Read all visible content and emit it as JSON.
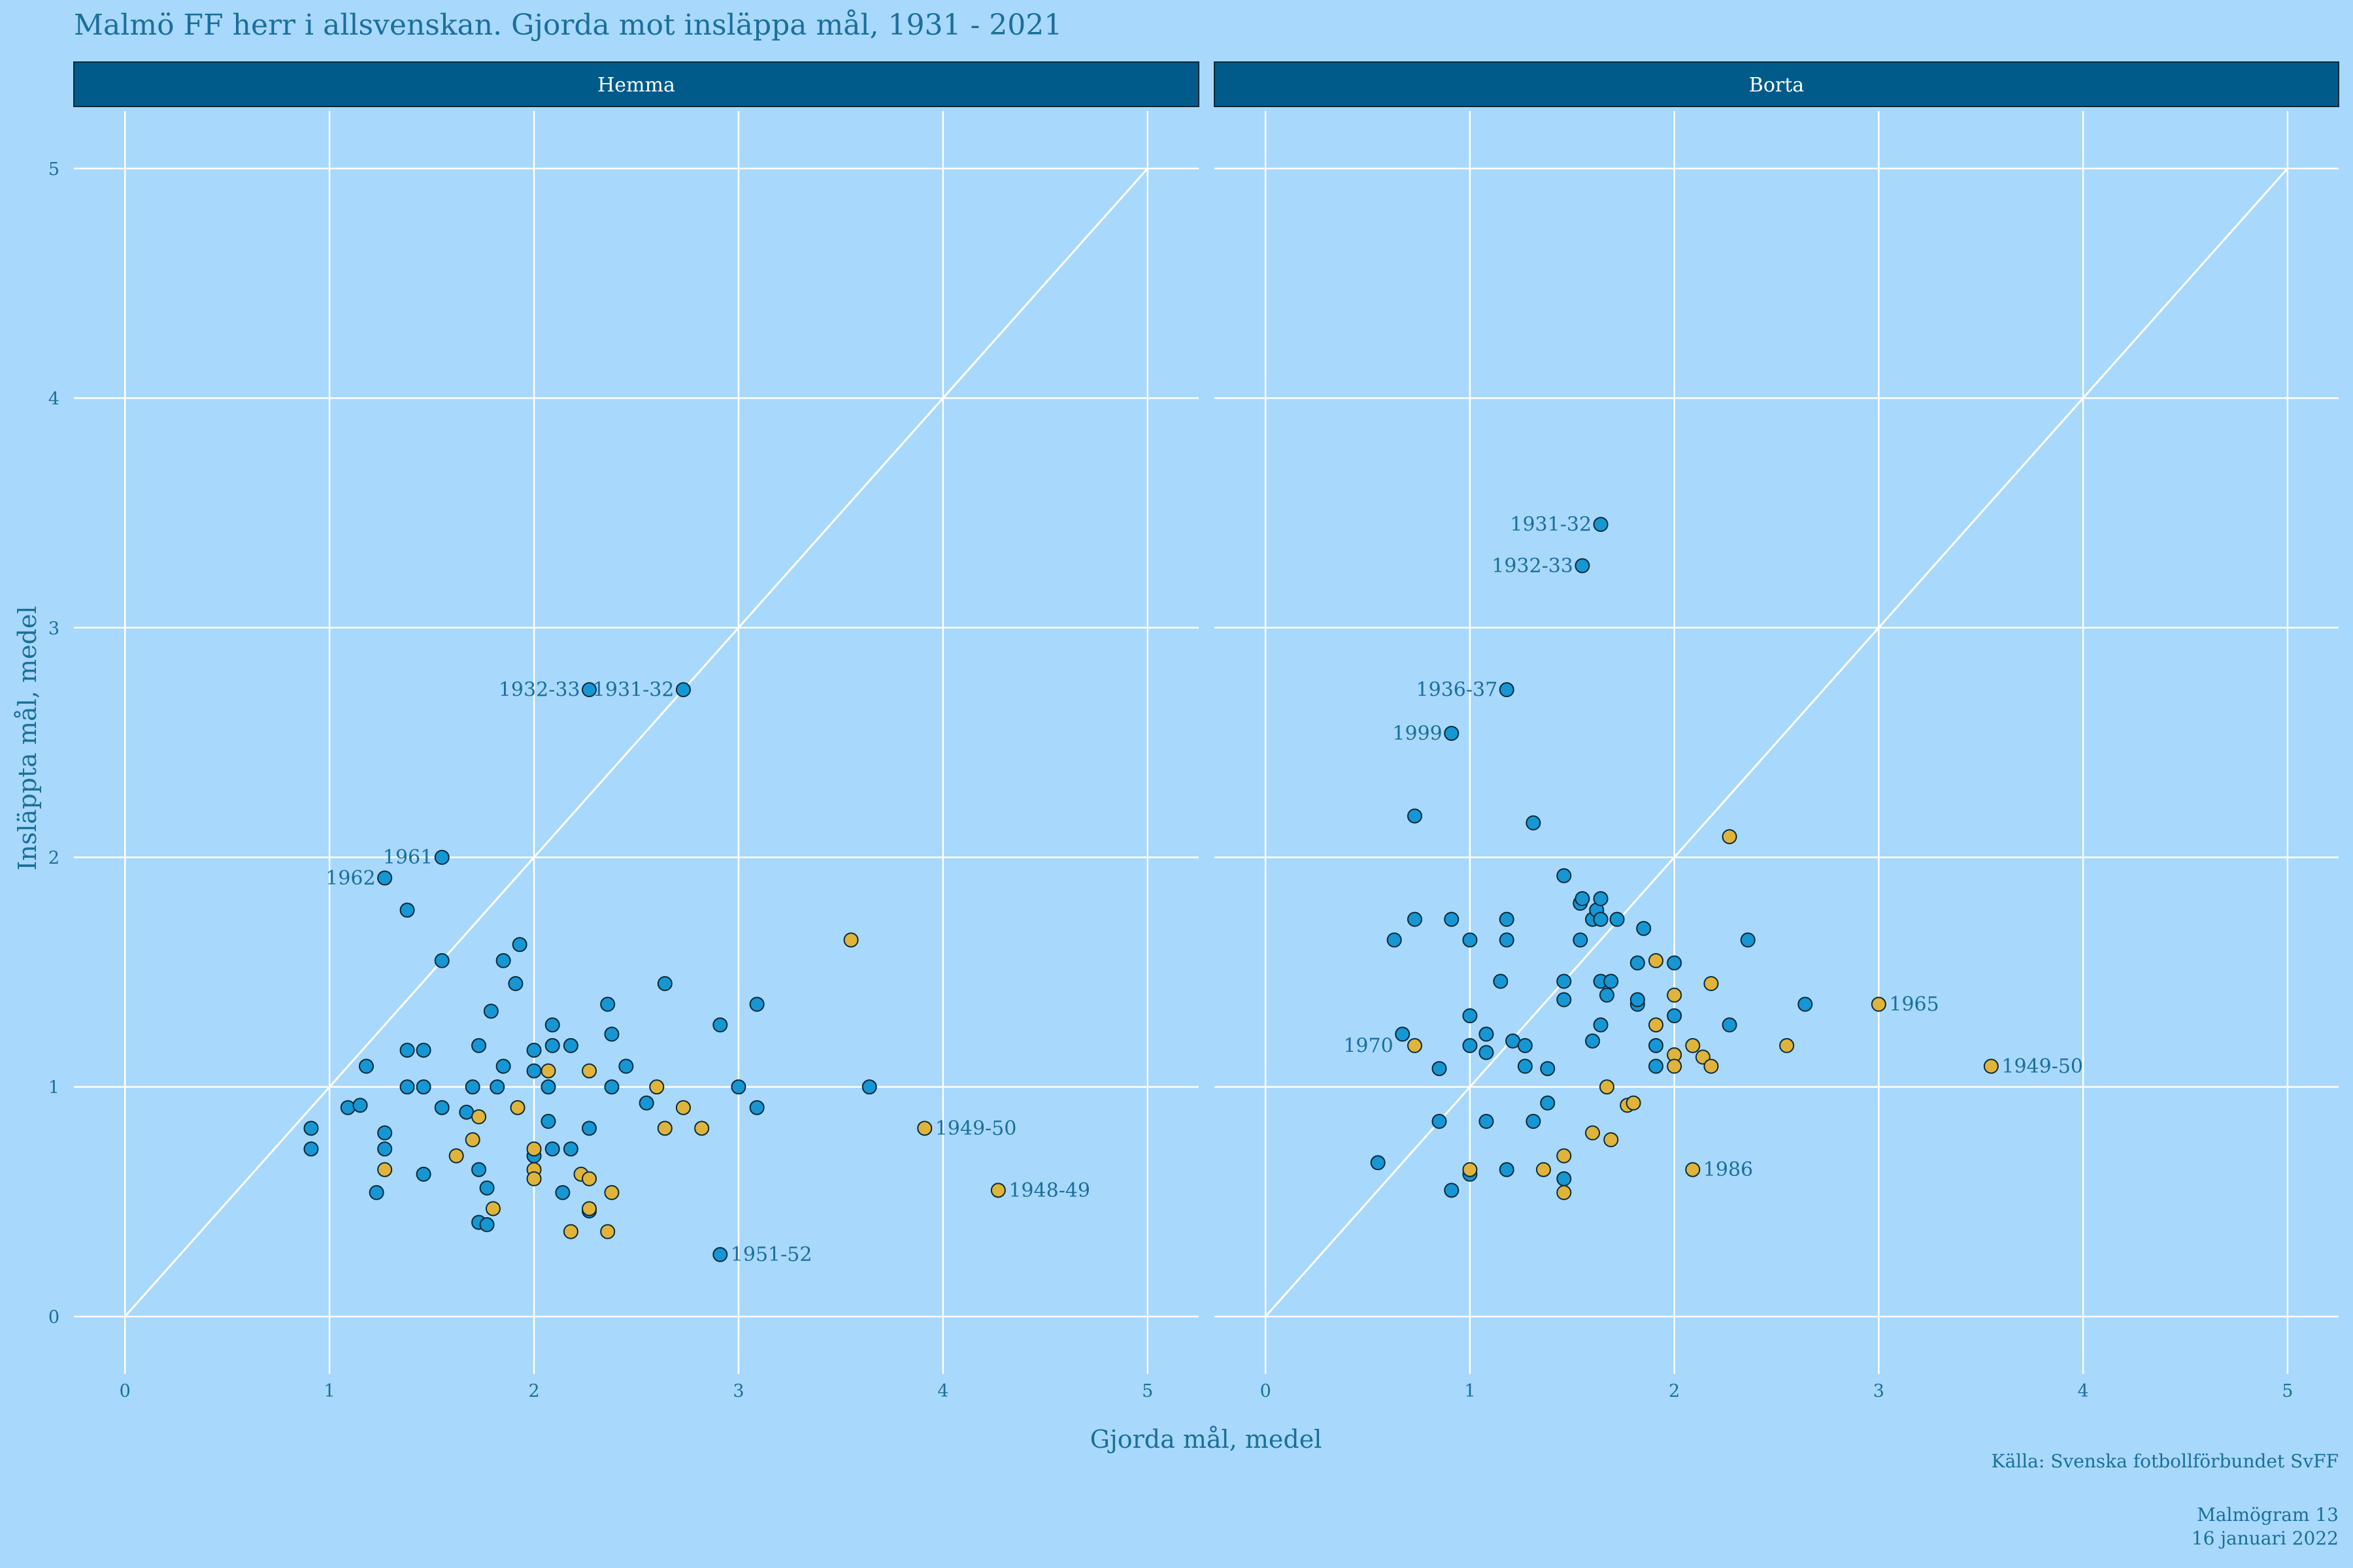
{
  "chart_data": {
    "type": "scatter",
    "title": "Malmö FF herr i allsvenskan. Gjorda mot insläppa mål, 1931 - 2021",
    "xlabel": "Gjorda mål, medel",
    "ylabel": "Insläppta mål, medel",
    "xlim": [
      -0.25,
      5.25
    ],
    "ylim": [
      -0.25,
      5.25
    ],
    "x_ticks": [
      "0",
      "1",
      "2",
      "3",
      "4",
      "5"
    ],
    "y_ticks": [
      "0",
      "1",
      "2",
      "3",
      "4",
      "5"
    ],
    "grid": true,
    "reference_line": "y = x",
    "caption": "Källa: Svenska fotbollförbundet SvFF",
    "footer": [
      "Malmögram 13",
      "16 januari 2022"
    ],
    "colors": {
      "background": "#a8d8fc",
      "strip": "#005b8a",
      "strip_text": "#ffffff",
      "text": "#1b6f9a",
      "grid": "#ffffff",
      "point_a": "#1696d2",
      "point_b": "#e0b43a",
      "point_stroke": "#0a2a3a"
    },
    "panels": [
      {
        "name": "Hemma",
        "points_blue": [
          [
            0.91,
            0.82
          ],
          [
            0.91,
            0.73
          ],
          [
            1.09,
            0.91
          ],
          [
            1.15,
            0.92
          ],
          [
            1.18,
            1.09
          ],
          [
            1.23,
            0.54
          ],
          [
            1.27,
            0.8
          ],
          [
            1.27,
            0.73
          ],
          [
            1.27,
            1.91
          ],
          [
            1.38,
            1.77
          ],
          [
            1.38,
            1.16
          ],
          [
            1.38,
            1.0
          ],
          [
            1.46,
            1.16
          ],
          [
            1.46,
            1.0
          ],
          [
            1.46,
            0.62
          ],
          [
            1.55,
            2.0
          ],
          [
            1.55,
            1.55
          ],
          [
            1.55,
            0.91
          ],
          [
            1.67,
            0.89
          ],
          [
            1.7,
            1.0
          ],
          [
            1.73,
            1.18
          ],
          [
            1.73,
            0.64
          ],
          [
            1.73,
            0.41
          ],
          [
            1.77,
            0.4
          ],
          [
            1.77,
            0.56
          ],
          [
            1.79,
            1.33
          ],
          [
            1.82,
            1.0
          ],
          [
            1.85,
            1.55
          ],
          [
            1.85,
            1.09
          ],
          [
            1.91,
            1.45
          ],
          [
            1.93,
            1.62
          ],
          [
            2.0,
            1.16
          ],
          [
            2.0,
            1.07
          ],
          [
            2.0,
            0.7
          ],
          [
            2.07,
            1.0
          ],
          [
            2.07,
            0.85
          ],
          [
            2.09,
            1.27
          ],
          [
            2.09,
            1.18
          ],
          [
            2.09,
            0.73
          ],
          [
            2.14,
            0.54
          ],
          [
            2.18,
            1.18
          ],
          [
            2.18,
            0.73
          ],
          [
            2.27,
            2.73
          ],
          [
            2.27,
            0.82
          ],
          [
            2.27,
            0.46
          ],
          [
            2.36,
            1.36
          ],
          [
            2.38,
            1.23
          ],
          [
            2.38,
            1.0
          ],
          [
            2.45,
            1.09
          ],
          [
            2.55,
            0.93
          ],
          [
            2.64,
            1.45
          ],
          [
            2.73,
            2.73
          ],
          [
            2.91,
            1.27
          ],
          [
            2.91,
            0.27
          ],
          [
            3.0,
            1.0
          ],
          [
            3.09,
            1.36
          ],
          [
            3.09,
            0.91
          ],
          [
            3.64,
            1.0
          ]
        ],
        "points_gold": [
          [
            1.27,
            0.64
          ],
          [
            1.62,
            0.7
          ],
          [
            1.7,
            0.77
          ],
          [
            1.73,
            0.87
          ],
          [
            1.8,
            0.47
          ],
          [
            1.92,
            0.91
          ],
          [
            2.0,
            0.73
          ],
          [
            2.0,
            0.64
          ],
          [
            2.0,
            0.6
          ],
          [
            2.07,
            1.07
          ],
          [
            2.18,
            0.37
          ],
          [
            2.23,
            0.62
          ],
          [
            2.27,
            0.6
          ],
          [
            2.27,
            1.07
          ],
          [
            2.27,
            0.47
          ],
          [
            2.36,
            0.37
          ],
          [
            2.38,
            0.54
          ],
          [
            2.6,
            1.0
          ],
          [
            2.64,
            0.82
          ],
          [
            2.73,
            0.91
          ],
          [
            2.82,
            0.82
          ],
          [
            3.55,
            1.64
          ],
          [
            3.91,
            0.82
          ],
          [
            4.27,
            0.55
          ]
        ],
        "labels": [
          {
            "text": "1932-33",
            "x": 2.27,
            "y": 2.73,
            "side": "left"
          },
          {
            "text": "1931-32",
            "x": 2.73,
            "y": 2.73,
            "side": "left"
          },
          {
            "text": "1961",
            "x": 1.55,
            "y": 2.0,
            "side": "left"
          },
          {
            "text": "1962",
            "x": 1.27,
            "y": 1.91,
            "side": "left"
          },
          {
            "text": "1949-50",
            "x": 3.91,
            "y": 0.82,
            "side": "right"
          },
          {
            "text": "1948-49",
            "x": 4.27,
            "y": 0.55,
            "side": "right"
          },
          {
            "text": "1951-52",
            "x": 2.91,
            "y": 0.27,
            "side": "right"
          }
        ]
      },
      {
        "name": "Borta",
        "points_blue": [
          [
            0.55,
            0.67
          ],
          [
            0.63,
            1.64
          ],
          [
            0.67,
            1.23
          ],
          [
            0.73,
            2.18
          ],
          [
            0.73,
            1.73
          ],
          [
            0.85,
            1.08
          ],
          [
            0.85,
            0.85
          ],
          [
            0.91,
            1.73
          ],
          [
            0.91,
            0.55
          ],
          [
            0.91,
            2.54
          ],
          [
            1.0,
            1.64
          ],
          [
            1.0,
            1.31
          ],
          [
            1.0,
            1.18
          ],
          [
            1.0,
            0.62
          ],
          [
            1.08,
            1.23
          ],
          [
            1.08,
            1.15
          ],
          [
            1.08,
            0.85
          ],
          [
            1.15,
            1.46
          ],
          [
            1.18,
            1.73
          ],
          [
            1.18,
            1.64
          ],
          [
            1.18,
            0.64
          ],
          [
            1.18,
            2.73
          ],
          [
            1.21,
            1.2
          ],
          [
            1.27,
            1.18
          ],
          [
            1.27,
            1.09
          ],
          [
            1.31,
            2.15
          ],
          [
            1.31,
            0.85
          ],
          [
            1.38,
            1.08
          ],
          [
            1.38,
            0.93
          ],
          [
            1.46,
            1.92
          ],
          [
            1.46,
            1.46
          ],
          [
            1.46,
            1.38
          ],
          [
            1.46,
            0.6
          ],
          [
            1.54,
            1.8
          ],
          [
            1.54,
            1.64
          ],
          [
            1.55,
            1.82
          ],
          [
            1.55,
            3.27
          ],
          [
            1.6,
            1.2
          ],
          [
            1.6,
            1.73
          ],
          [
            1.62,
            1.77
          ],
          [
            1.64,
            1.82
          ],
          [
            1.64,
            1.73
          ],
          [
            1.64,
            1.46
          ],
          [
            1.64,
            1.27
          ],
          [
            1.64,
            3.45
          ],
          [
            1.67,
            1.4
          ],
          [
            1.69,
            1.46
          ],
          [
            1.72,
            1.73
          ],
          [
            1.82,
            1.54
          ],
          [
            1.82,
            1.36
          ],
          [
            1.82,
            1.38
          ],
          [
            1.85,
            1.69
          ],
          [
            1.91,
            1.18
          ],
          [
            1.91,
            1.09
          ],
          [
            2.0,
            1.54
          ],
          [
            2.0,
            1.31
          ],
          [
            2.27,
            1.27
          ],
          [
            2.36,
            1.64
          ],
          [
            2.64,
            1.36
          ]
        ],
        "points_gold": [
          [
            0.73,
            1.18
          ],
          [
            1.0,
            0.64
          ],
          [
            1.36,
            0.64
          ],
          [
            1.46,
            0.7
          ],
          [
            1.46,
            0.54
          ],
          [
            1.6,
            0.8
          ],
          [
            1.67,
            1.0
          ],
          [
            1.69,
            0.77
          ],
          [
            1.77,
            0.92
          ],
          [
            1.8,
            0.93
          ],
          [
            1.91,
            1.55
          ],
          [
            1.91,
            1.27
          ],
          [
            2.0,
            1.4
          ],
          [
            2.0,
            1.14
          ],
          [
            2.0,
            1.09
          ],
          [
            2.09,
            1.18
          ],
          [
            2.09,
            0.64
          ],
          [
            2.14,
            1.13
          ],
          [
            2.18,
            1.45
          ],
          [
            2.18,
            1.09
          ],
          [
            2.27,
            2.09
          ],
          [
            2.55,
            1.18
          ],
          [
            3.0,
            1.36
          ],
          [
            3.55,
            1.09
          ]
        ],
        "labels": [
          {
            "text": "1931-32",
            "x": 1.64,
            "y": 3.45,
            "side": "left"
          },
          {
            "text": "1932-33",
            "x": 1.55,
            "y": 3.27,
            "side": "left"
          },
          {
            "text": "1936-37",
            "x": 1.18,
            "y": 2.73,
            "side": "left"
          },
          {
            "text": "1999",
            "x": 0.91,
            "y": 2.54,
            "side": "left"
          },
          {
            "text": "1970",
            "x": 0.67,
            "y": 1.18,
            "side": "left"
          },
          {
            "text": "1965",
            "x": 3.0,
            "y": 1.36,
            "side": "right"
          },
          {
            "text": "1949-50",
            "x": 3.55,
            "y": 1.09,
            "side": "right"
          },
          {
            "text": "1986",
            "x": 2.09,
            "y": 0.64,
            "side": "right"
          }
        ]
      }
    ]
  }
}
